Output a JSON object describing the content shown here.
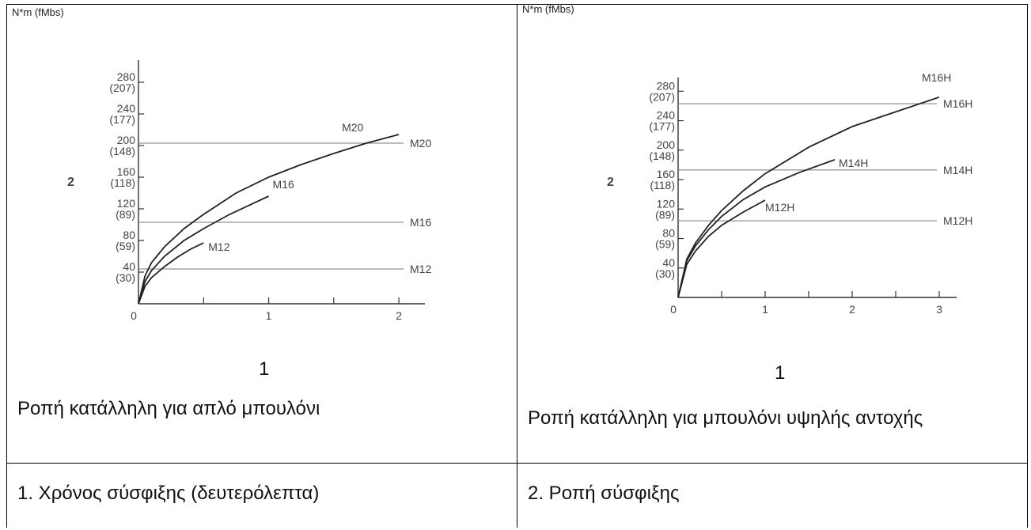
{
  "chart_data": [
    {
      "type": "line",
      "unit_label": "N*m (fMbs)",
      "xlabel": "1",
      "ylabel": "2",
      "caption": "Ροπή κατάλληλη για απλό μπουλόνι",
      "x_ticks": [
        "0",
        "1",
        "2"
      ],
      "xlim": [
        0,
        2.2
      ],
      "ylim": [
        0,
        300
      ],
      "y_ticks": [
        {
          "value": 280,
          "main": "280",
          "sub": "(207)"
        },
        {
          "value": 240,
          "main": "240",
          "sub": "(177)"
        },
        {
          "value": 200,
          "main": "200",
          "sub": "(148)"
        },
        {
          "value": 160,
          "main": "160",
          "sub": "(118)"
        },
        {
          "value": 120,
          "main": "120",
          "sub": "(89)"
        },
        {
          "value": 80,
          "main": "80",
          "sub": "(59)"
        },
        {
          "value": 40,
          "main": "40",
          "sub": "(30)"
        }
      ],
      "reference_lines": [
        {
          "name": "M20",
          "y": 203
        },
        {
          "name": "M16",
          "y": 103
        },
        {
          "name": "M12",
          "y": 44
        }
      ],
      "series": [
        {
          "name": "M20",
          "x": [
            0,
            0.05,
            0.1,
            0.2,
            0.35,
            0.5,
            0.75,
            1.0,
            1.25,
            1.5,
            1.75,
            2.0
          ],
          "y": [
            0,
            35,
            52,
            72,
            95,
            113,
            140,
            160,
            176,
            190,
            203,
            214
          ]
        },
        {
          "name": "M16",
          "x": [
            0,
            0.05,
            0.1,
            0.2,
            0.35,
            0.5,
            0.7,
            1.0
          ],
          "y": [
            0,
            28,
            42,
            60,
            80,
            95,
            113,
            136
          ]
        },
        {
          "name": "M12",
          "x": [
            0,
            0.05,
            0.1,
            0.2,
            0.3,
            0.4,
            0.5
          ],
          "y": [
            0,
            22,
            33,
            47,
            59,
            69,
            77
          ]
        }
      ]
    },
    {
      "type": "line",
      "unit_label": "N*m (fMbs)",
      "xlabel": "1",
      "ylabel": "2",
      "caption": "Ροπή κατάλληλη για μπουλόνι υψηλής αντοχής",
      "x_ticks": [
        "0",
        "1",
        "2",
        "3"
      ],
      "xlim": [
        0,
        3.2
      ],
      "ylim": [
        0,
        290
      ],
      "y_ticks": [
        {
          "value": 280,
          "main": "280",
          "sub": "(207)"
        },
        {
          "value": 240,
          "main": "240",
          "sub": "(177)"
        },
        {
          "value": 200,
          "main": "200",
          "sub": "(148)"
        },
        {
          "value": 160,
          "main": "160",
          "sub": "(118)"
        },
        {
          "value": 120,
          "main": "120",
          "sub": "(89)"
        },
        {
          "value": 80,
          "main": "80",
          "sub": "(59)"
        },
        {
          "value": 40,
          "main": "40",
          "sub": "(30)"
        }
      ],
      "reference_lines": [
        {
          "name": "M16H",
          "y": 263
        },
        {
          "name": "M14H",
          "y": 173
        },
        {
          "name": "M12H",
          "y": 104
        }
      ],
      "series": [
        {
          "name": "M16H",
          "x": [
            0,
            0.1,
            0.2,
            0.35,
            0.5,
            0.75,
            1.0,
            1.5,
            2.0,
            2.5,
            3.0
          ],
          "y": [
            0,
            52,
            74,
            98,
            118,
            145,
            168,
            204,
            232,
            252,
            272
          ]
        },
        {
          "name": "M14H",
          "x": [
            0,
            0.1,
            0.2,
            0.35,
            0.5,
            0.75,
            1.0,
            1.4,
            1.8
          ],
          "y": [
            0,
            50,
            70,
            92,
            110,
            133,
            150,
            170,
            187
          ]
        },
        {
          "name": "M12H",
          "x": [
            0,
            0.1,
            0.2,
            0.35,
            0.5,
            0.75,
            1.0
          ],
          "y": [
            0,
            45,
            63,
            83,
            98,
            116,
            132
          ]
        }
      ]
    }
  ],
  "footer": {
    "left": "1. Χρόνος σύσφιξης (δευτερόλεπτα)",
    "right": "2. Ροπή σύσφιξης"
  }
}
